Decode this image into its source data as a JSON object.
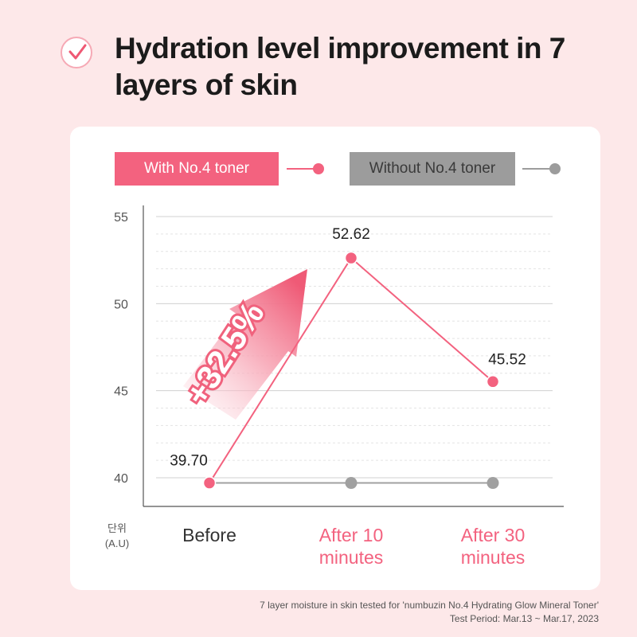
{
  "header": {
    "check_icon": "checkmark-circle-icon",
    "title": "Hydration level improvement in 7 layers of skin"
  },
  "legend": {
    "with_label": "With No.4 toner",
    "without_label": "Without No.4 toner",
    "with_color": "#f3627f",
    "without_color": "#9c9c9c"
  },
  "unit_label_1": "단위",
  "unit_label_2": "(A.U)",
  "annotation": "+32.5%",
  "footnote": {
    "line1": "7 layer moisture in skin tested for 'numbuzin No.4 Hydrating Glow Mineral Toner'",
    "line2": "Test Period: Mar.13 ~ Mar.17, 2023"
  },
  "chart_data": {
    "type": "line",
    "categories": [
      "Before",
      "After 10 minutes",
      "After 30 minutes"
    ],
    "category_lines": [
      [
        "Before"
      ],
      [
        "After 10",
        "minutes"
      ],
      [
        "After 30",
        "minutes"
      ]
    ],
    "ylim": [
      40,
      55
    ],
    "yticks": [
      40,
      45,
      50,
      55
    ],
    "ytick_labels": [
      "40",
      "45",
      "50",
      "55"
    ],
    "series": [
      {
        "name": "With No.4 toner",
        "values": [
          39.7,
          52.62,
          45.52
        ],
        "labels": [
          "39.70",
          "52.62",
          "45.52"
        ],
        "color": "#f3627f"
      },
      {
        "name": "Without No.4 toner",
        "values": [
          39.7,
          39.7,
          39.7
        ],
        "color": "#a0a0a0"
      }
    ]
  }
}
